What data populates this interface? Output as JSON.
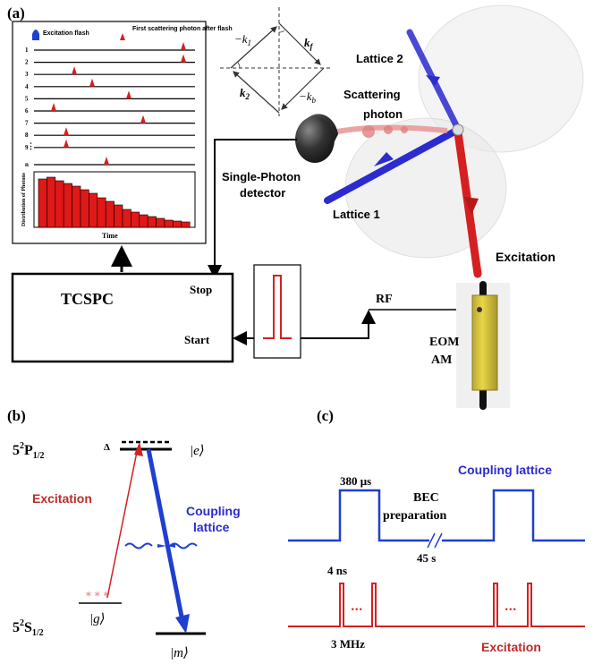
{
  "panel_a": {
    "label": "(a)",
    "histogram": {
      "excitation_flash": "Excitation flash",
      "first_scattering": "First scattering photon after flash",
      "trace_numbers": [
        "1",
        "2",
        "3",
        "4",
        "5",
        "6",
        "7",
        "8",
        "9"
      ],
      "trace_n": "n",
      "ylabel": "Distribution of Photons",
      "xlabel": "Time",
      "pulse_color": "#d42020",
      "flash_color": "#1f3fd0"
    },
    "vectors": {
      "neg_k1": "−k",
      "neg_k1_sub": "1",
      "kf": "k",
      "kf_sub": "f",
      "k2": "k",
      "k2_sub": "2",
      "neg_kb": "−k",
      "neg_kb_sub": "b"
    },
    "tcspc": {
      "title": "TCSPC",
      "stop": "Stop",
      "start": "Start"
    },
    "rf": "RF",
    "eom": "EOM",
    "am": "AM",
    "detector": "Single-Photon detector",
    "lattice1": "Lattice 1",
    "lattice2": "Lattice 2",
    "scattering_photon": "Scattering photon",
    "excitation": "Excitation",
    "lattice_color": "#2b2bd0",
    "excitation_color": "#d42020"
  },
  "panel_b": {
    "label": "(b)",
    "level_p": "5",
    "level_p_super": "2",
    "level_p_main": "P",
    "level_p_sub": "1/2",
    "level_s": "5",
    "level_s_super": "2",
    "level_s_main": "S",
    "level_s_sub": "1/2",
    "delta": "Δ",
    "state_e": "|e⟩",
    "state_g": "|g⟩",
    "state_m": "|m⟩",
    "excitation": "Excitation",
    "coupling_lattice": "Coupling lattice"
  },
  "panel_c": {
    "label": "(c)",
    "pulse_width": "380 μs",
    "bec": "BEC preparation",
    "wait": "45 s",
    "coupling_lattice": "Coupling lattice",
    "ns": "4 ns",
    "dots": "...",
    "rate": "3 MHz",
    "excitation": "Excitation"
  }
}
